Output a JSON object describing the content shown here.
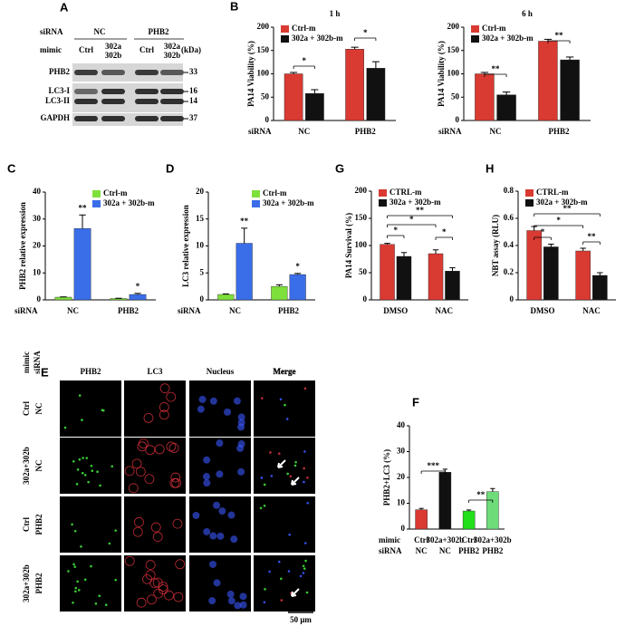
{
  "panel_labels": [
    "A",
    "B",
    "C",
    "D",
    "E",
    "F",
    "G",
    "H"
  ],
  "blot": {
    "sirna_label": "siRNA",
    "mimic_label": "mimic",
    "groups": [
      "NC",
      "PHB2"
    ],
    "lanes": [
      [
        "Ctrl"
      ],
      [
        "302a",
        "302b"
      ],
      [
        "Ctrl"
      ],
      [
        "302a",
        "302b"
      ]
    ],
    "unit": "(kDa)",
    "bands": [
      {
        "names": [
          "PHB2"
        ],
        "kda": [
          "33"
        ]
      },
      {
        "names": [
          "LC3-I",
          "LC3-II"
        ],
        "kda": [
          "16",
          "14"
        ]
      },
      {
        "names": [
          "GAPDH"
        ],
        "kda": [
          "37"
        ]
      }
    ]
  },
  "microscopy": {
    "row_header": [
      "mimic",
      "siRNA"
    ],
    "columns": [
      "PHB2",
      "LC3",
      "Nucleus",
      "Merge"
    ],
    "rows": [
      [
        "Ctrl",
        "NC"
      ],
      [
        "302a+302b",
        "NC"
      ],
      [
        "Ctrl",
        "PHB2"
      ],
      [
        "302a+302b",
        "PHB2"
      ]
    ],
    "scale_bar": "50 μm"
  },
  "chart_data": [
    {
      "type": "bar",
      "title": "1 h",
      "ylabel": "PA14 Viability (%)",
      "xlabel": "siRNA",
      "categories": [
        "NC",
        "PHB2"
      ],
      "series": [
        {
          "name": "Ctrl-m",
          "color": "#d93a32",
          "values": [
            100,
            153
          ],
          "errors": [
            3,
            4
          ]
        },
        {
          "name": "302a + 302b-m",
          "color": "#111111",
          "values": [
            58,
            112
          ],
          "errors": [
            8,
            14
          ]
        }
      ],
      "ylim": [
        0,
        200
      ],
      "yticks": [
        0,
        50,
        100,
        150,
        200
      ],
      "legend": "upper left",
      "annotations": [
        "*",
        "*"
      ]
    },
    {
      "type": "bar",
      "title": "6 h",
      "ylabel": "PA14 Viability (%)",
      "xlabel": "siRNA",
      "categories": [
        "NC",
        "PHB2"
      ],
      "series": [
        {
          "name": "Ctrl-m",
          "color": "#d93a32",
          "values": [
            100,
            170
          ],
          "errors": [
            3,
            4
          ]
        },
        {
          "name": "302a + 302b-m",
          "color": "#111111",
          "values": [
            55,
            130
          ],
          "errors": [
            6,
            6
          ]
        }
      ],
      "ylim": [
        0,
        200
      ],
      "yticks": [
        0,
        50,
        100,
        150,
        200
      ],
      "legend": "upper left",
      "annotations": [
        "**",
        "**"
      ]
    },
    {
      "type": "bar",
      "ylabel": "PHB2 relative expression",
      "xlabel": "siRNA",
      "categories": [
        "NC",
        "PHB2"
      ],
      "series": [
        {
          "name": "Ctrl-m",
          "color": "#7ee03a",
          "values": [
            1,
            0.5
          ],
          "errors": [
            0.1,
            0.1
          ]
        },
        {
          "name": "302a + 302b-m",
          "color": "#3a6de8",
          "values": [
            26.5,
            2
          ],
          "errors": [
            5,
            0.4
          ]
        }
      ],
      "ylim": [
        0,
        40
      ],
      "yticks": [
        0,
        10,
        20,
        30,
        40
      ],
      "legend": "upper right",
      "annotations": [
        "**",
        "*"
      ]
    },
    {
      "type": "bar",
      "ylabel": "LC3 relative expression",
      "xlabel": "siRNA",
      "categories": [
        "NC",
        "PHB2"
      ],
      "series": [
        {
          "name": "Ctrl-m",
          "color": "#7ee03a",
          "values": [
            1,
            2.5
          ],
          "errors": [
            0.1,
            0.3
          ]
        },
        {
          "name": "302a + 302b-m",
          "color": "#3a6de8",
          "values": [
            10.5,
            4.7
          ],
          "errors": [
            2.8,
            0.2
          ]
        }
      ],
      "ylim": [
        0,
        20
      ],
      "yticks": [
        0,
        5,
        10,
        15,
        20
      ],
      "legend": "upper right",
      "annotations": [
        "**",
        "*"
      ]
    },
    {
      "type": "bar",
      "ylabel": "PA14 Survival (%)",
      "categories": [
        "DMSO",
        "NAC"
      ],
      "series": [
        {
          "name": "CTRL-m",
          "color": "#d93a32",
          "values": [
            102,
            85
          ],
          "errors": [
            2,
            7
          ]
        },
        {
          "name": "302a + 302b-m",
          "color": "#111111",
          "values": [
            80,
            53
          ],
          "errors": [
            7,
            6
          ]
        }
      ],
      "ylim": [
        0,
        200
      ],
      "yticks": [
        0,
        50,
        100,
        150,
        200
      ],
      "legend": "upper left",
      "annotations": [
        "*",
        "*",
        "**",
        "*"
      ]
    },
    {
      "type": "bar",
      "ylabel": "NBT assay (RLU)",
      "categories": [
        "DMSO",
        "NAC"
      ],
      "series": [
        {
          "name": "CTRL-m",
          "color": "#d93a32",
          "values": [
            0.51,
            0.36
          ],
          "errors": [
            0.03,
            0.02
          ]
        },
        {
          "name": "302a + 302b-m",
          "color": "#111111",
          "values": [
            0.39,
            0.18
          ],
          "errors": [
            0.02,
            0.02
          ]
        }
      ],
      "ylim": [
        0,
        0.8
      ],
      "yticks": [
        0,
        0.2,
        0.4,
        0.6,
        0.8
      ],
      "legend": "upper left",
      "annotations": [
        "*",
        "*",
        "**",
        "**"
      ]
    },
    {
      "type": "bar",
      "ylabel": "PHB2+LC3 (%)",
      "xlabel": "mimic",
      "xlabel2": "siRNA",
      "categories": [
        "Ctrl",
        "302a+302b",
        "Ctrl",
        "302a+302b"
      ],
      "categories2": [
        "NC",
        "NC",
        "PHB2",
        "PHB2"
      ],
      "values": [
        7.5,
        22,
        7,
        14.5
      ],
      "errors": [
        0.5,
        1.2,
        0.4,
        1.2
      ],
      "colors": [
        "#d93a32",
        "#111111",
        "#22e01a",
        "#6fdc7a"
      ],
      "ylim": [
        0,
        40
      ],
      "yticks": [
        0,
        10,
        20,
        30,
        40
      ],
      "annotations": [
        "***",
        "**"
      ]
    }
  ]
}
